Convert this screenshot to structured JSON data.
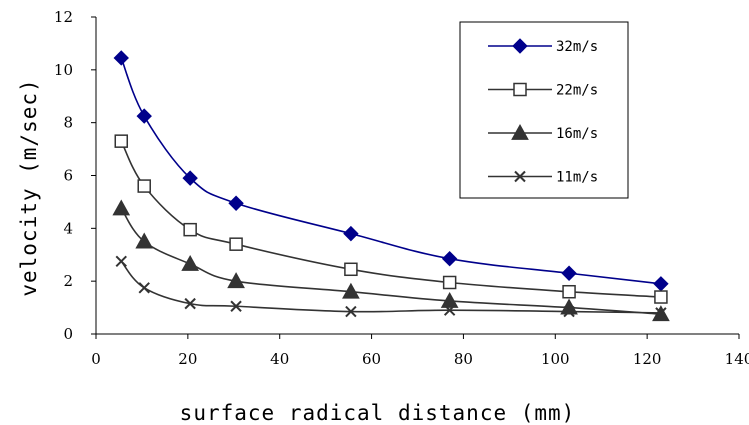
{
  "chart_data": {
    "type": "line",
    "xlabel": "surface radical distance (mm)",
    "ylabel": "velocity (m/sec)",
    "xlim": [
      0,
      140
    ],
    "ylim": [
      0,
      12
    ],
    "xticks": [
      0,
      20,
      40,
      60,
      80,
      100,
      120,
      140
    ],
    "yticks": [
      0,
      2,
      4,
      6,
      8,
      10,
      12
    ],
    "grid": false,
    "legend_position": "top-right",
    "series": [
      {
        "name": "32m/s",
        "color": "#00008B",
        "marker": "diamond-filled",
        "x": [
          5.5,
          10.5,
          20.5,
          30.5,
          55.5,
          77,
          103,
          123
        ],
        "y": [
          10.45,
          8.25,
          5.9,
          4.95,
          3.8,
          2.85,
          2.3,
          1.9
        ]
      },
      {
        "name": "22m/s",
        "color": "#333333",
        "marker": "square-open",
        "x": [
          5.5,
          10.5,
          20.5,
          30.5,
          55.5,
          77,
          103,
          123
        ],
        "y": [
          7.3,
          5.6,
          3.95,
          3.4,
          2.45,
          1.95,
          1.6,
          1.4
        ]
      },
      {
        "name": "16m/s",
        "color": "#333333",
        "marker": "triangle-filled",
        "x": [
          5.5,
          10.5,
          20.5,
          30.5,
          55.5,
          77,
          103,
          123
        ],
        "y": [
          4.75,
          3.5,
          2.65,
          2.0,
          1.6,
          1.25,
          1.0,
          0.75
        ]
      },
      {
        "name": "11m/s",
        "color": "#333333",
        "marker": "x",
        "x": [
          5.5,
          10.5,
          20.5,
          30.5,
          55.5,
          77,
          103,
          123
        ],
        "y": [
          2.75,
          1.75,
          1.15,
          1.05,
          0.85,
          0.9,
          0.85,
          0.8
        ]
      }
    ]
  }
}
